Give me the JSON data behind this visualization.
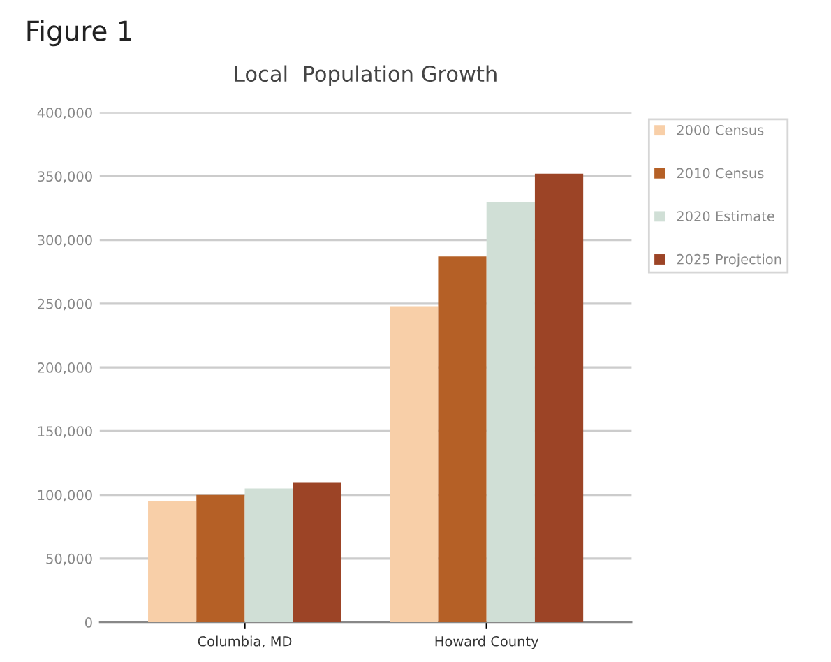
{
  "chart_data": {
    "type": "bar",
    "title": "Figure 1",
    "subtitle": "Local  Population Growth",
    "categories": [
      "Columbia, MD",
      "Howard County"
    ],
    "series": [
      {
        "name": "2000 Census",
        "color": "#f8cfa8",
        "values": [
          95000,
          248000
        ]
      },
      {
        "name": "2010 Census",
        "color": "#b56026",
        "values": [
          100000,
          287000
        ]
      },
      {
        "name": "2020 Estimate",
        "color": "#d0dfd6",
        "values": [
          105000,
          330000
        ]
      },
      {
        "name": "2025 Projection",
        "color": "#9c4426",
        "values": [
          110000,
          352000
        ]
      }
    ],
    "ylim": [
      0,
      400000
    ],
    "yticks": [
      {
        "value": 0,
        "label": "0"
      },
      {
        "value": 50000,
        "label": "50,000"
      },
      {
        "value": 100000,
        "label": "100,000"
      },
      {
        "value": 150000,
        "label": "150,000"
      },
      {
        "value": 200000,
        "label": "200,000"
      },
      {
        "value": 250000,
        "label": "250,000"
      },
      {
        "value": 300000,
        "label": "300,000"
      },
      {
        "value": 350000,
        "label": "350,000"
      },
      {
        "value": 400000,
        "label": "400,000"
      }
    ],
    "grid": "y",
    "legend": "right"
  }
}
